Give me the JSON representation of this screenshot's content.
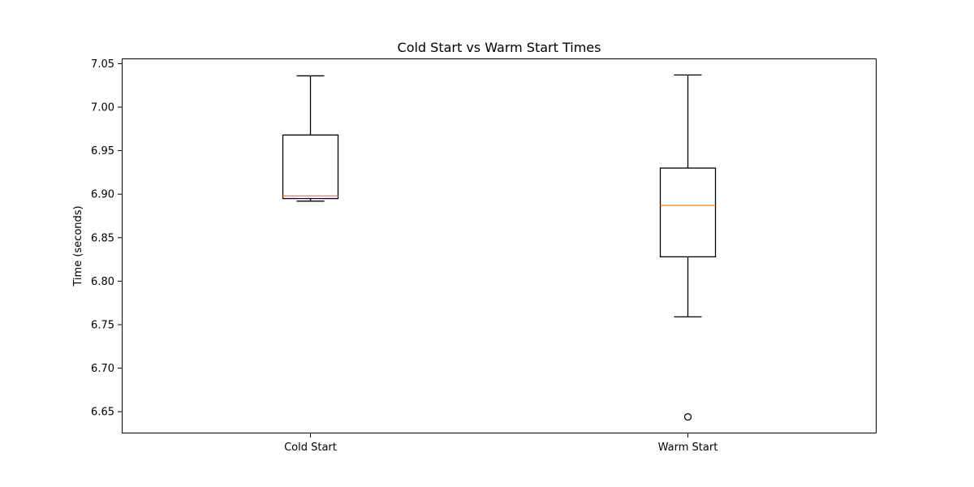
{
  "chart_data": {
    "type": "box",
    "title": "Cold Start vs Warm Start Times",
    "xlabel": "",
    "ylabel": "Time (seconds)",
    "ylim": [
      6.625,
      7.056
    ],
    "yticks": [
      "6.65",
      "6.70",
      "6.75",
      "6.80",
      "6.85",
      "6.90",
      "6.95",
      "7.00",
      "7.05"
    ],
    "grid": false,
    "categories": [
      "Cold Start",
      "Warm Start"
    ],
    "boxes": [
      {
        "category": "Cold Start",
        "whisker_low": 6.892,
        "q1": 6.895,
        "median": 6.898,
        "q3": 6.968,
        "whisker_high": 7.036,
        "outliers": []
      },
      {
        "category": "Warm Start",
        "whisker_low": 6.759,
        "q1": 6.828,
        "median": 6.887,
        "q3": 6.93,
        "whisker_high": 7.037,
        "outliers": [
          6.644
        ]
      }
    ],
    "colors": {
      "box": "#000000",
      "median": "#ff7f0e",
      "outlier": "#000000"
    }
  }
}
